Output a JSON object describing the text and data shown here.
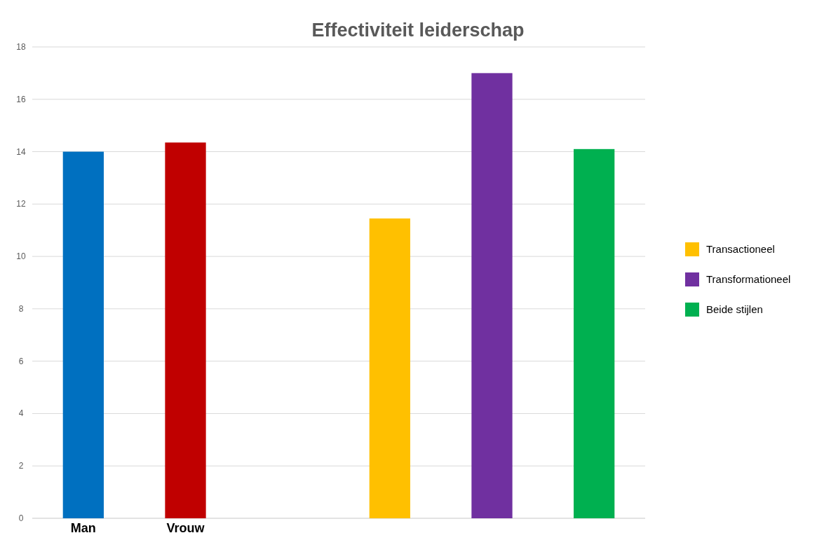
{
  "chart_data": {
    "type": "bar",
    "title": "Effectiviteit leiderschap",
    "categories": [
      "Man",
      "Vrouw",
      null,
      null,
      null,
      null
    ],
    "series": [
      {
        "colors": [
          "#0070c0",
          "#c00000",
          null,
          null,
          null,
          null
        ],
        "values": [
          14,
          14.35,
          null,
          null,
          null,
          null
        ]
      },
      {
        "name": "Transactioneel",
        "color": "#ffc000",
        "values": [
          null,
          null,
          null,
          11.45,
          null,
          null
        ]
      },
      {
        "name": "Transformationeel",
        "color": "#7030a0",
        "values": [
          null,
          null,
          null,
          null,
          17,
          null
        ]
      },
      {
        "name": "Beide stijlen",
        "color": "#00b050",
        "values": [
          null,
          null,
          null,
          null,
          null,
          14.1
        ]
      }
    ],
    "ylim": [
      0,
      18
    ],
    "yticks": [
      0,
      2,
      4,
      6,
      8,
      10,
      12,
      14,
      16,
      18
    ],
    "grid": "y",
    "legend": "right"
  }
}
